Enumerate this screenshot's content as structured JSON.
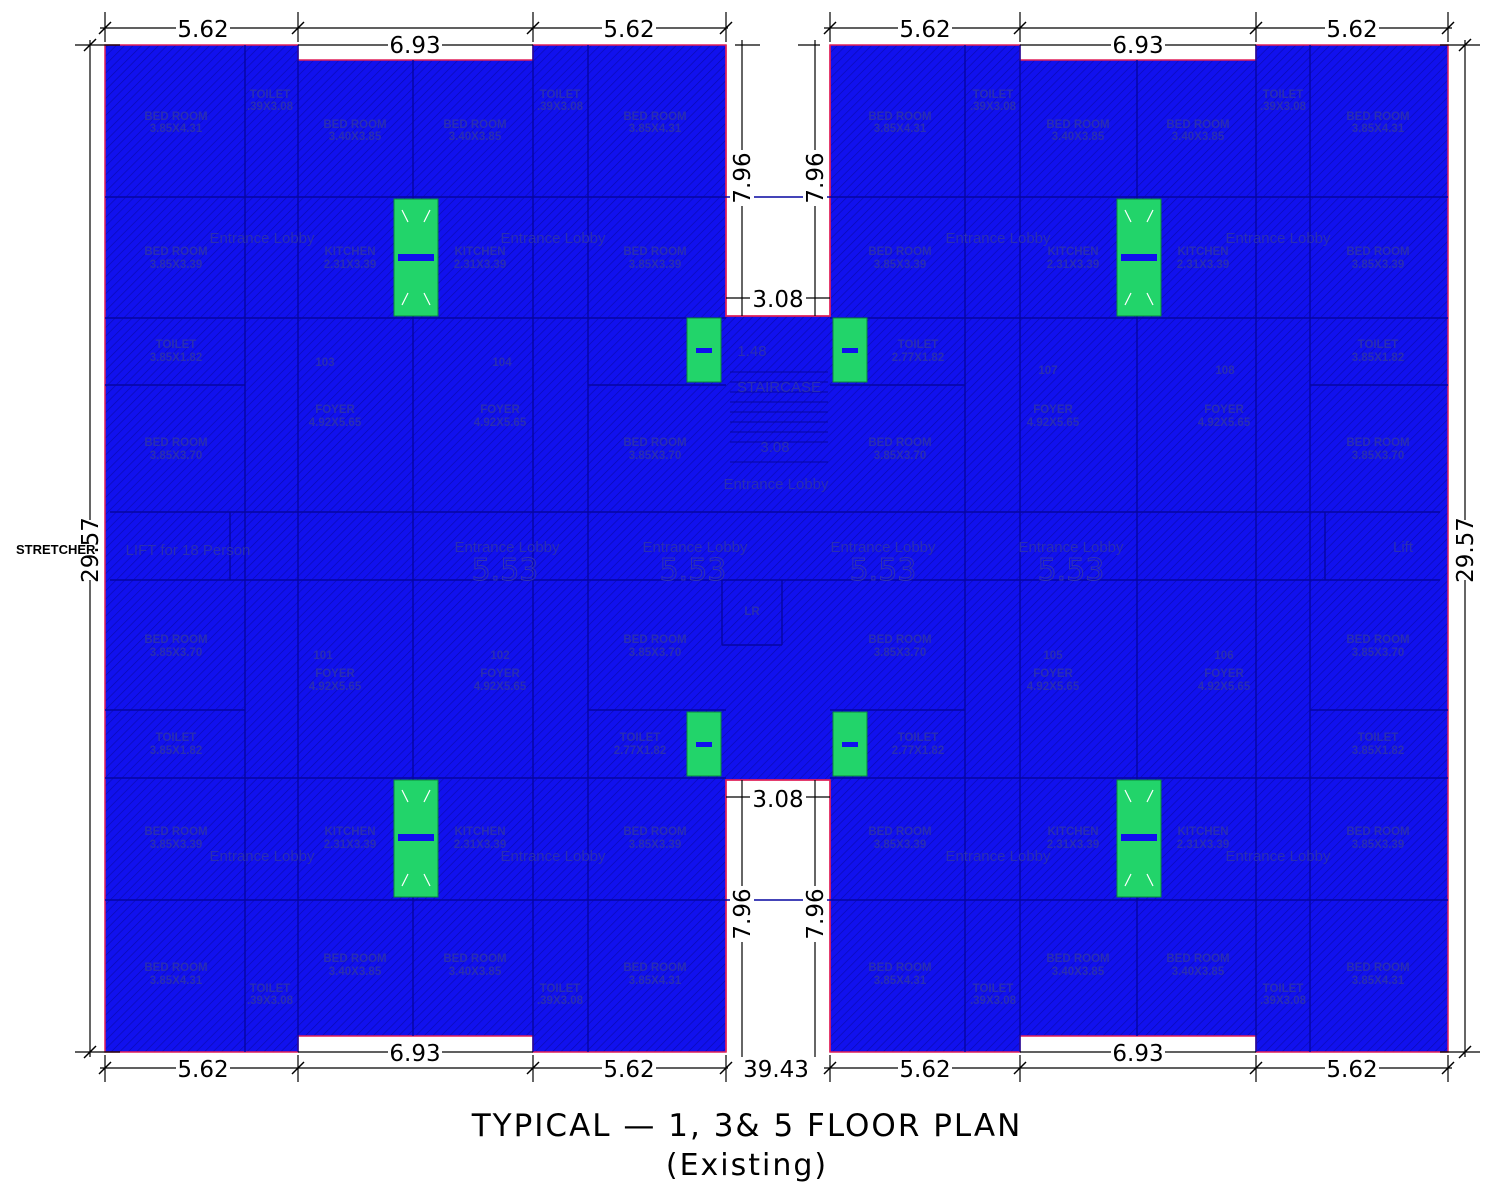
{
  "title": "TYPICAL — 1, 3& 5 FLOOR PLAN",
  "subtitle": "(Existing)",
  "side_label": "STRETCHER",
  "colors": {
    "slab": "#1010ee",
    "shaft": "#22d46a",
    "outline": "#e0205a",
    "line": "#000000"
  },
  "dimensions": {
    "top_left": [
      "5.62",
      "6.93",
      "5.62"
    ],
    "top_right": [
      "5.62",
      "6.93",
      "5.62"
    ],
    "bottom_left": [
      "5.62",
      "6.93",
      "5.62"
    ],
    "bottom_right": [
      "5.62",
      "6.93",
      "5.62"
    ],
    "overall_height_left": "29.57",
    "overall_height_right": "29.57",
    "notch_depth": "7.96",
    "gap_width": "3.08",
    "overall_width": "39.43"
  },
  "rooms": {
    "bed_431": "BED ROOM",
    "bed_431_size": "3.85X4.31",
    "bed_340": "BED ROOM",
    "bed_340_size": "3.40X3.85",
    "bed_339": "BED ROOM",
    "bed_339_size": "3.85X3.39",
    "bed_370": "BED ROOM",
    "bed_370_size": "3.85X3.70",
    "toilet": "TOILET",
    "toilet_small_size": ".39X3.08",
    "toilet_182": "3.85X1.82",
    "toilet_277": "2.77X1.82",
    "kitchen": "KITCHEN",
    "kitchen_size": "2.31X3.39",
    "foyer": "FOYER",
    "foyer_size": "4.92X5.65",
    "entrance_lobby": "Entrance Lobby",
    "staircase": "STAIRCASE",
    "lift_left": "LIFT for 18 Person",
    "lift_right": "Lift",
    "lr": "LR",
    "unit_numbers": [
      "103",
      "104",
      "107",
      "108",
      "101",
      "102",
      "105",
      "106"
    ],
    "dim_548": "5.53",
    "dim_148": "1.48",
    "stair_308": "3.08"
  }
}
